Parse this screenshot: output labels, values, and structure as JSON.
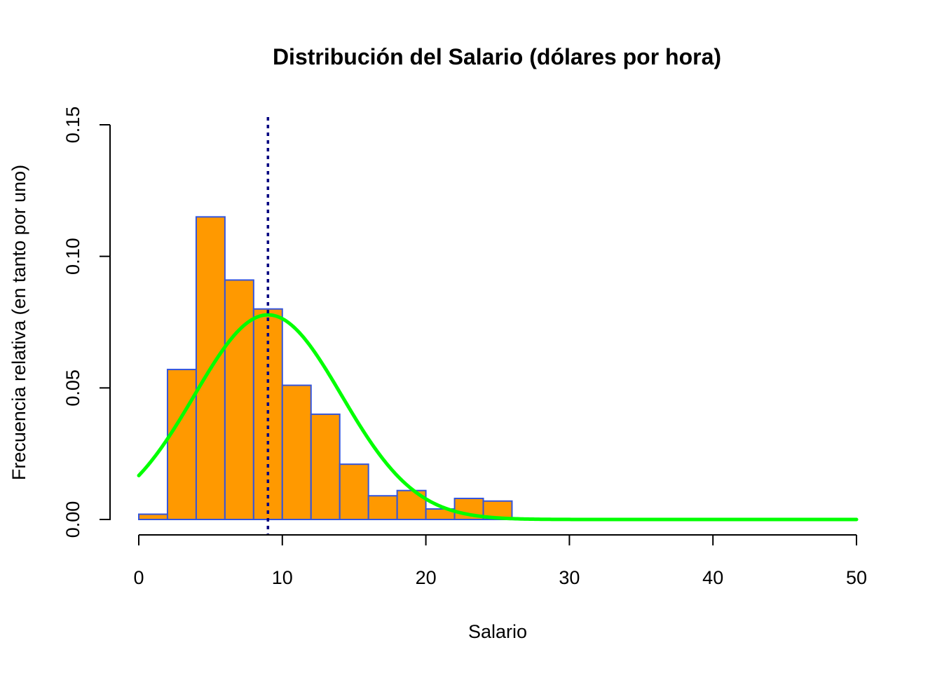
{
  "chart_data": {
    "type": "bar",
    "subtype": "histogram",
    "title": "Distribución del Salario (dólares por hora)",
    "xlabel": "Salario",
    "ylabel": "Frecuencia relativa (en tanto por uno)",
    "xlim": [
      0,
      50
    ],
    "ylim": [
      0,
      0.15
    ],
    "x_ticks": [
      "0",
      "10",
      "20",
      "30",
      "40",
      "50"
    ],
    "y_ticks": [
      "0.00",
      "0.05",
      "0.10",
      "0.15"
    ],
    "bins": [
      {
        "start": 0,
        "end": 2,
        "value": 0.002
      },
      {
        "start": 2,
        "end": 4,
        "value": 0.057
      },
      {
        "start": 4,
        "end": 6,
        "value": 0.115
      },
      {
        "start": 6,
        "end": 8,
        "value": 0.091
      },
      {
        "start": 8,
        "end": 10,
        "value": 0.08
      },
      {
        "start": 10,
        "end": 12,
        "value": 0.051
      },
      {
        "start": 12,
        "end": 14,
        "value": 0.04
      },
      {
        "start": 14,
        "end": 16,
        "value": 0.021
      },
      {
        "start": 16,
        "end": 18,
        "value": 0.009
      },
      {
        "start": 18,
        "end": 20,
        "value": 0.011
      },
      {
        "start": 20,
        "end": 22,
        "value": 0.004
      },
      {
        "start": 22,
        "end": 24,
        "value": 0.008
      },
      {
        "start": 24,
        "end": 26,
        "value": 0.007
      },
      {
        "start": 26,
        "end": 28,
        "value": 0.0004
      },
      {
        "start": 28,
        "end": 30,
        "value": 0
      },
      {
        "start": 30,
        "end": 32,
        "value": 0
      },
      {
        "start": 32,
        "end": 34,
        "value": 0
      },
      {
        "start": 34,
        "end": 36,
        "value": 0
      },
      {
        "start": 36,
        "end": 38,
        "value": 0
      },
      {
        "start": 38,
        "end": 40,
        "value": 0
      },
      {
        "start": 40,
        "end": 42,
        "value": 0
      },
      {
        "start": 42,
        "end": 44,
        "value": 0
      },
      {
        "start": 44,
        "end": 46,
        "value": 0.0004
      },
      {
        "start": 46,
        "end": 48,
        "value": 0
      },
      {
        "start": 48,
        "end": 50,
        "value": 0
      }
    ],
    "normal_curve": {
      "mean": 9.0,
      "sd": 5.13
    },
    "mean_line": {
      "x": 9.0
    },
    "colors": {
      "bar_fill": "#FF9900",
      "bar_border": "#3355DD",
      "curve": "#00FF00",
      "mean_line": "#000080"
    },
    "grid": false
  }
}
